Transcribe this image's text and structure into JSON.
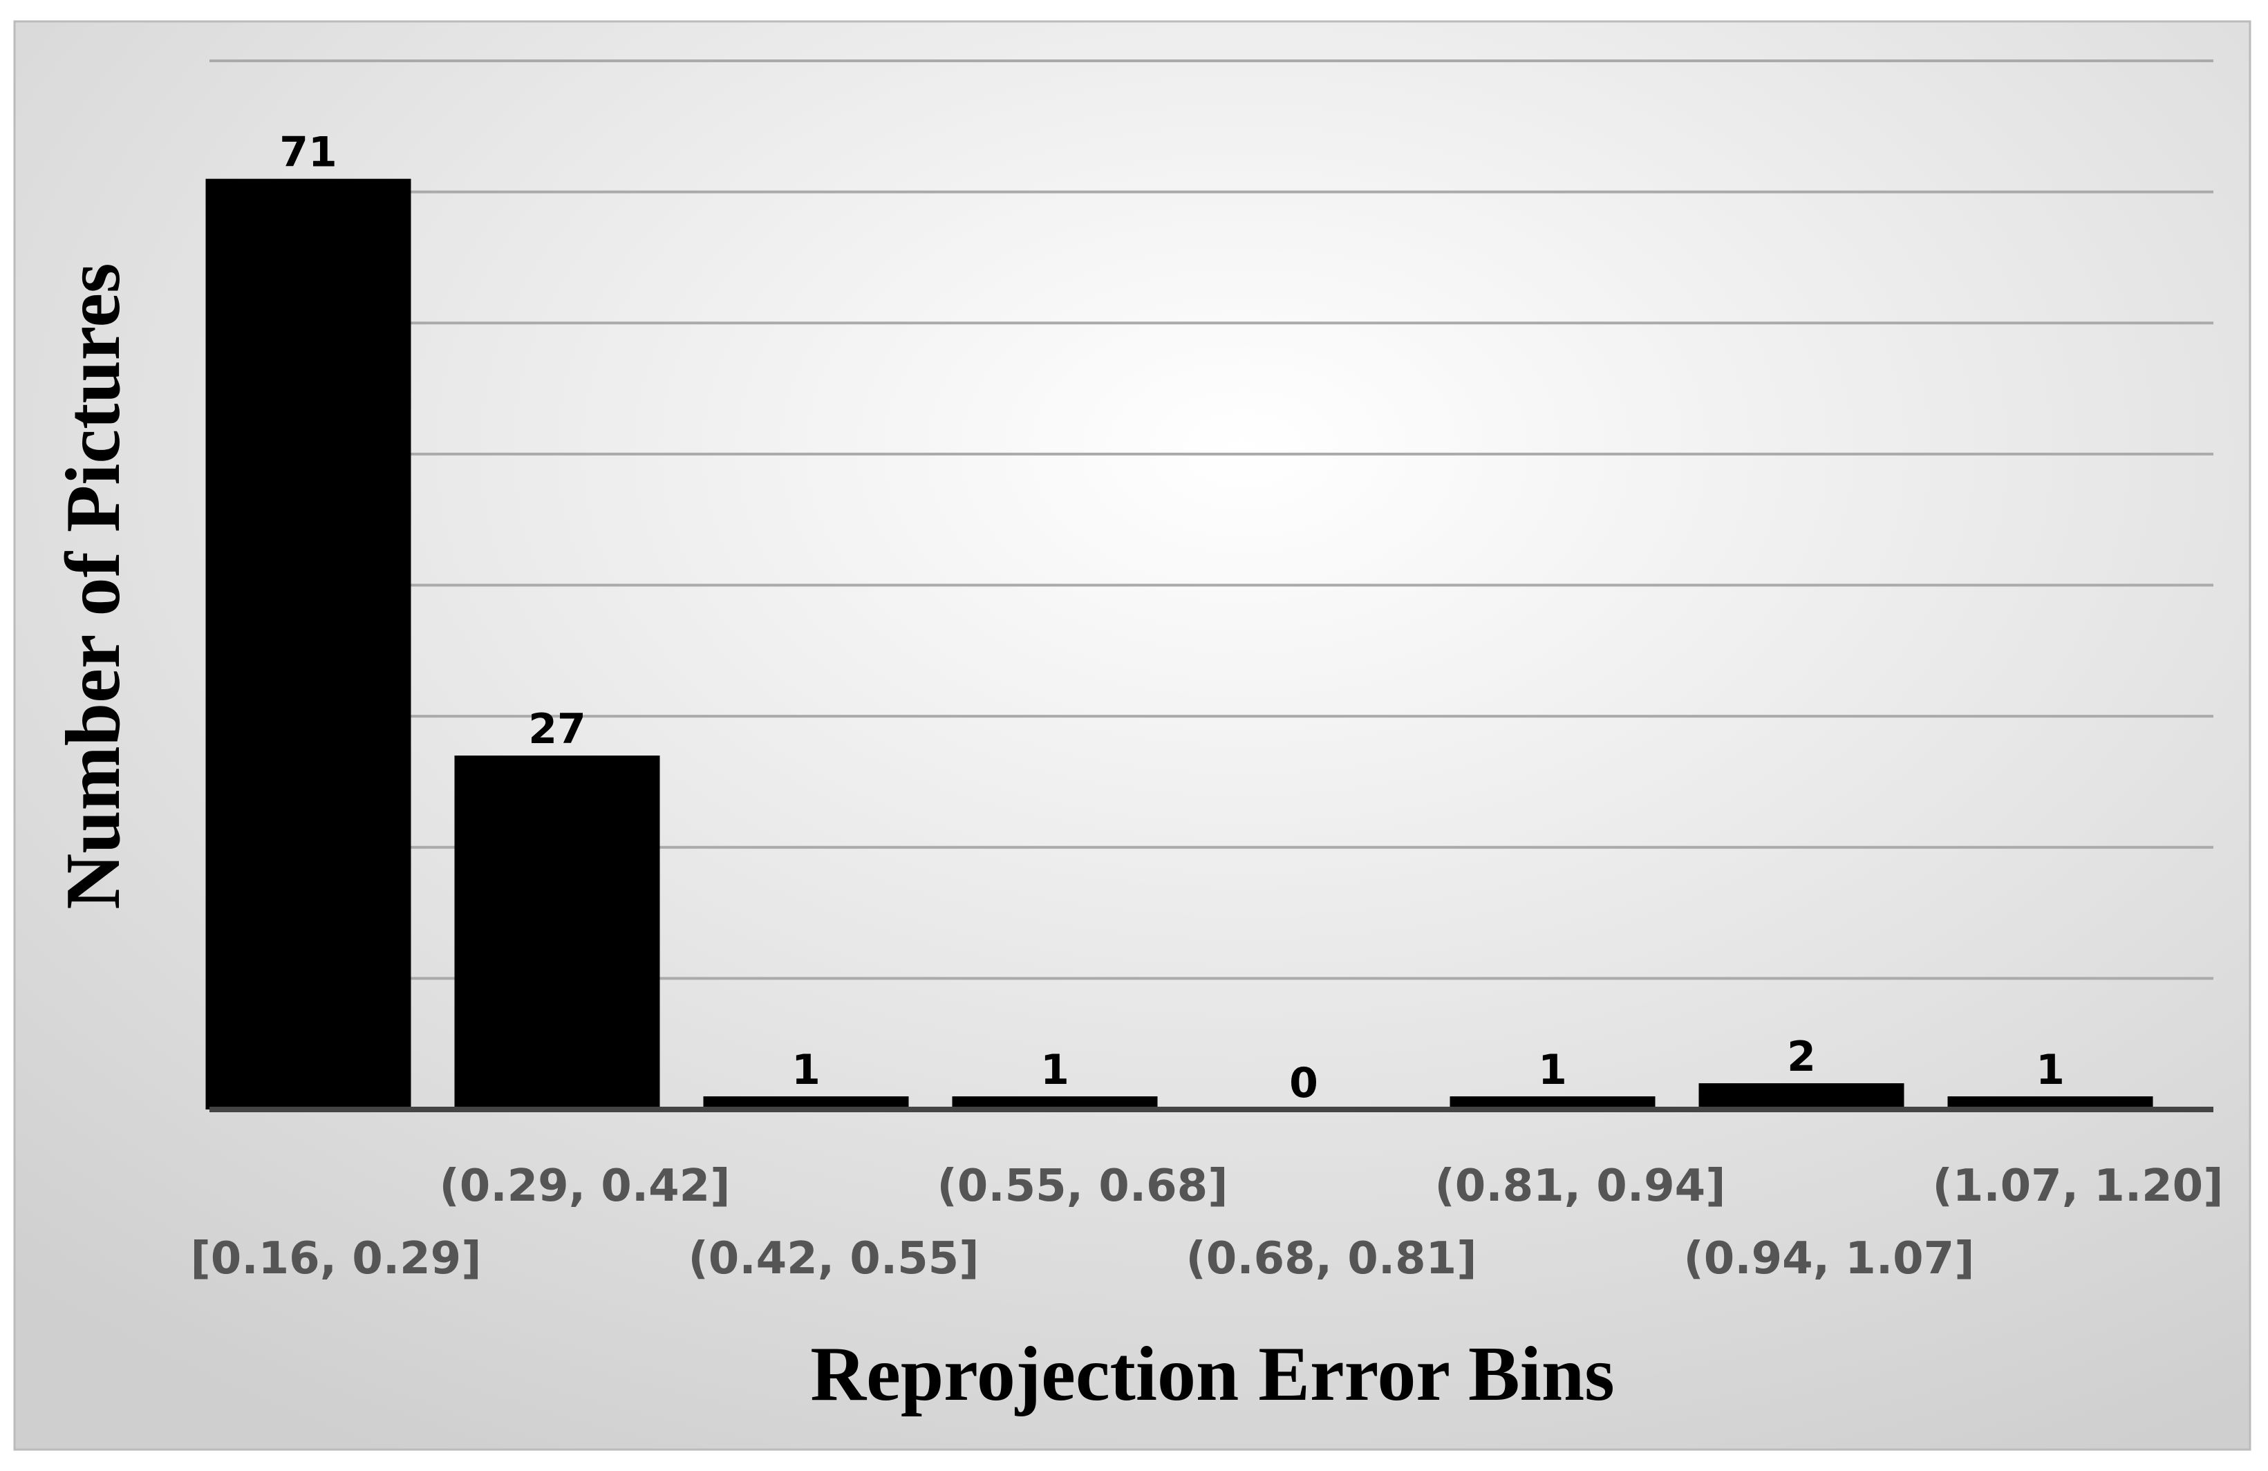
{
  "chart_data": {
    "type": "bar",
    "x_label": "Reprojection Error Bins",
    "y_label": "Number of Pictures",
    "categories": [
      "[0.16, 0.29]",
      "(0.29, 0.42]",
      "(0.42, 0.55]",
      "(0.55, 0.68]",
      "(0.68, 0.81]",
      "(0.81, 0.94]",
      "(0.94, 1.07]",
      "(1.07, 1.20]"
    ],
    "values": [
      71,
      27,
      1,
      1,
      0,
      1,
      2,
      1
    ],
    "color": "#000000",
    "ylim": [
      0,
      80
    ],
    "yticks": [
      0,
      10,
      20,
      30,
      40,
      50,
      60,
      70,
      80
    ],
    "grid": true
  }
}
